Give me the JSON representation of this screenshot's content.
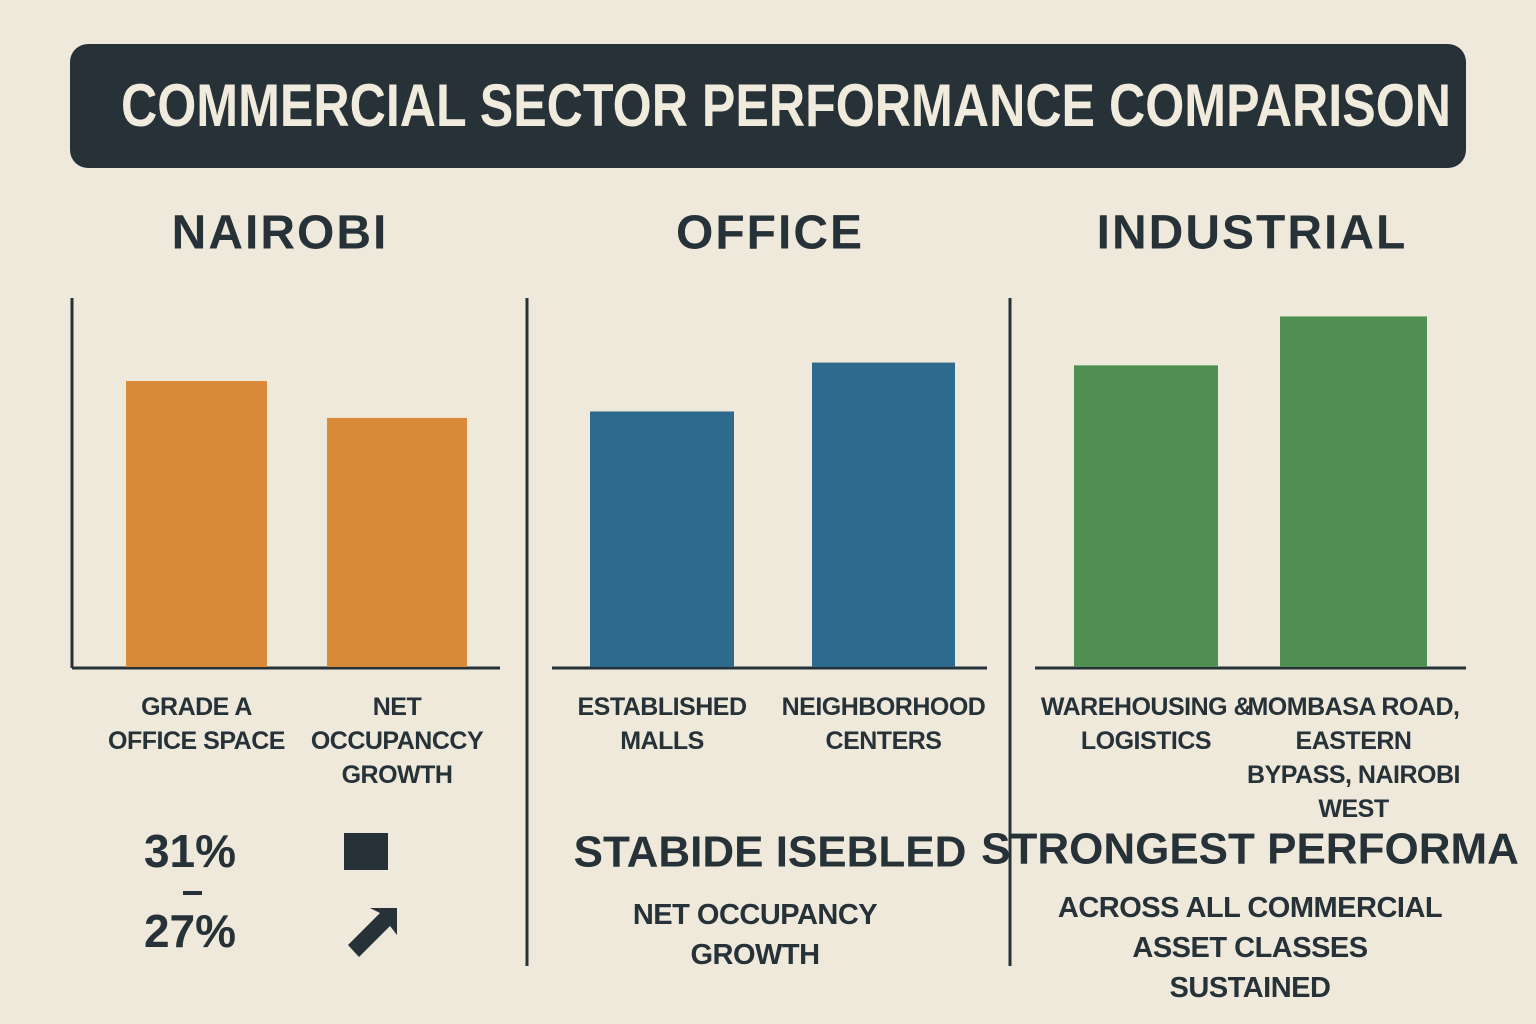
{
  "title": "COMMERCIAL SECTOR PERFORMANCE COMPARISON",
  "chart_data": [
    {
      "type": "bar",
      "title": "NAIROBI",
      "categories": [
        "GRADE A OFFICE SPACE",
        "NET OCCUPANCCY GROWTH"
      ],
      "values": [
        31,
        27
      ],
      "value_labels": [
        "31%",
        "27%"
      ],
      "color": "#d98b3a",
      "ylim": [
        0,
        40
      ]
    },
    {
      "type": "bar",
      "title": "OFFICE",
      "categories": [
        "ESTABLISHED MALLS",
        "NEIGHBORHOOD CENTERS"
      ],
      "values": [
        27.7,
        33
      ],
      "color": "#2e6a8e",
      "ylim": [
        0,
        40
      ],
      "annotation": "STABIDE ISEBLED",
      "note": "NET OCCUPANCY GROWTH"
    },
    {
      "type": "bar",
      "title": "INDUSTRIAL",
      "categories": [
        "WAREHOUSING & LOGISTICS",
        "MOMBASA ROAD, EASTERN BYPASS, NAIROBI WEST"
      ],
      "values": [
        32.7,
        38
      ],
      "color": "#4f8f52",
      "ylim": [
        0,
        40
      ],
      "annotation": "STRONGEST PERFORMA",
      "note": "ACROSS ALL COMMERCIAL ASSET CLASSES SUSTAINED"
    }
  ]
}
